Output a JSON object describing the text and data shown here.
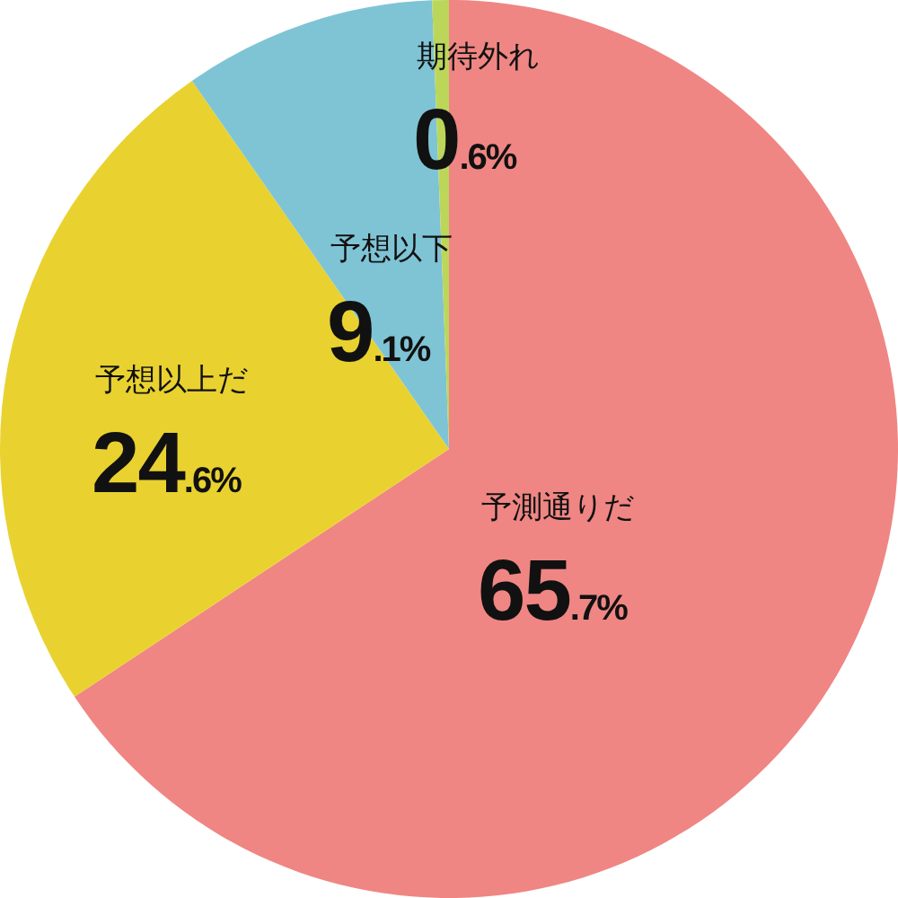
{
  "chart_data": {
    "type": "pie",
    "categories": [
      "予測通りだ",
      "予想以上だ",
      "予想以下",
      "期待外れ"
    ],
    "values": [
      65.7,
      24.6,
      9.1,
      0.6
    ],
    "colors": [
      "#ef8683",
      "#e9d230",
      "#7fc4d5",
      "#bcd65a"
    ],
    "value_labels": [
      "65.7%",
      "24.6%",
      "9.1%",
      "0.6%"
    ]
  }
}
